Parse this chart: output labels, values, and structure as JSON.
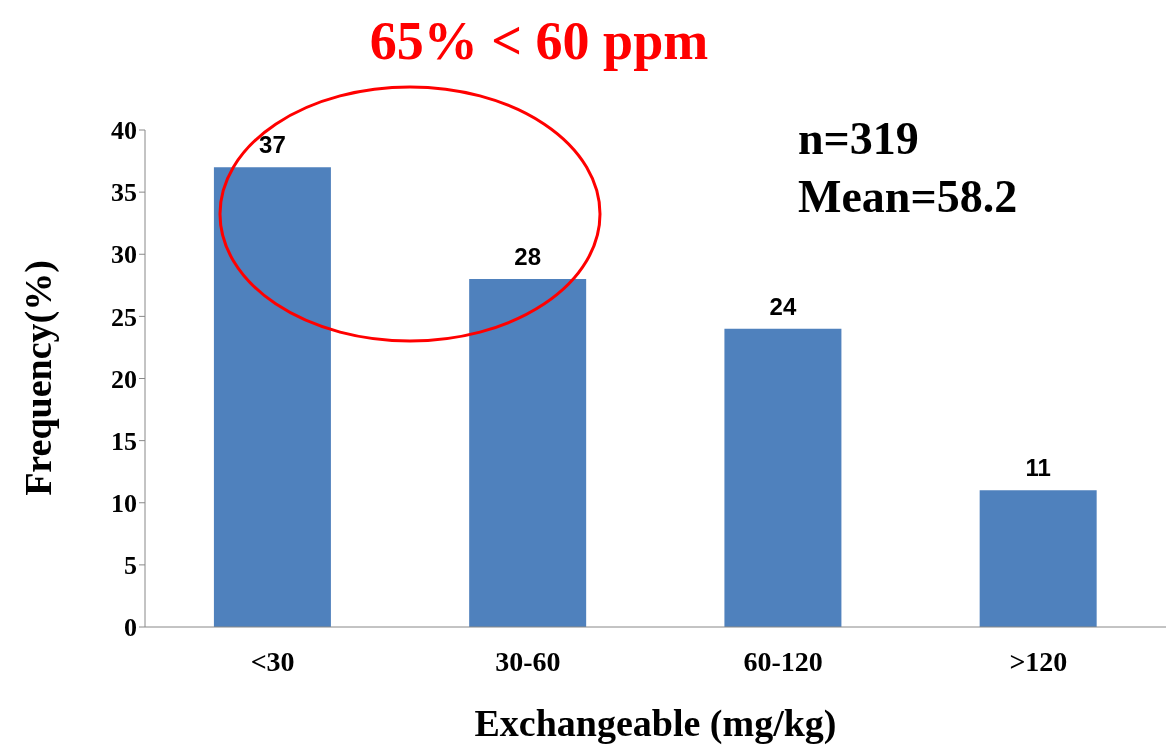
{
  "chart_data": {
    "type": "bar",
    "title": "65% < 60 ppm",
    "xlabel": "Exchangeable (mg/kg)",
    "ylabel": "Frequency(%)",
    "categories": [
      "<30",
      "30-60",
      "60-120",
      ">120"
    ],
    "values": [
      37,
      28,
      24,
      11
    ],
    "color": "#4f81bd",
    "ylim": [
      0,
      40
    ],
    "yticks": [
      0,
      5,
      10,
      15,
      20,
      25,
      30,
      35,
      40
    ],
    "grid": false,
    "data_labels": true,
    "annotations": [
      "n=319",
      "Mean=58.2"
    ]
  }
}
